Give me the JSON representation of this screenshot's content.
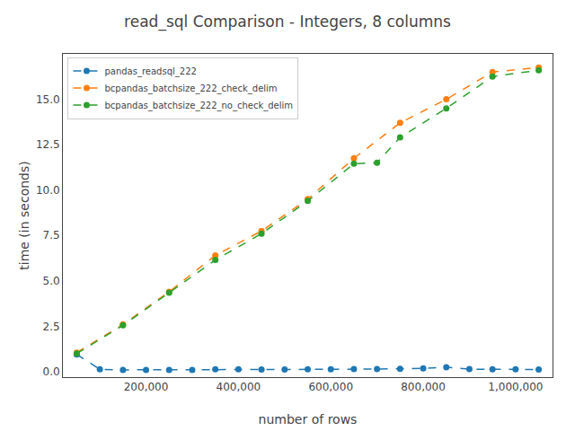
{
  "chart_data": {
    "type": "line",
    "title": "read_sql Comparison - Integers, 8 columns",
    "xlabel": "number of rows",
    "ylabel": "time (in seconds)",
    "series": [
      {
        "name": "pandas_readsql_222",
        "color": "#1f77b4",
        "marker": "circle",
        "line_style": "dashed",
        "x": [
          50000,
          100000,
          150000,
          200000,
          250000,
          300000,
          350000,
          400000,
          450000,
          500000,
          550000,
          600000,
          650000,
          700000,
          750000,
          800000,
          850000,
          900000,
          950000,
          1000000,
          1050000
        ],
        "values": [
          0.95,
          0.13,
          0.1,
          0.1,
          0.1,
          0.1,
          0.13,
          0.13,
          0.12,
          0.12,
          0.13,
          0.13,
          0.14,
          0.14,
          0.16,
          0.18,
          0.25,
          0.14,
          0.13,
          0.13,
          0.12
        ]
      },
      {
        "name": "bcpandas_batchsize_222_check_delim",
        "color": "#ff7f0e",
        "marker": "circle",
        "line_style": "dashed",
        "x": [
          50000,
          150000,
          250000,
          350000,
          450000,
          550000,
          650000,
          750000,
          850000,
          950000,
          1050000
        ],
        "values": [
          1.05,
          2.6,
          4.4,
          6.4,
          7.75,
          9.5,
          11.75,
          13.7,
          15.0,
          16.5,
          16.75
        ]
      },
      {
        "name": "bcpandas_batchsize_222_no_check_delim",
        "color": "#2ca02c",
        "marker": "circle",
        "line_style": "dashed",
        "x": [
          50000,
          150000,
          250000,
          350000,
          450000,
          550000,
          650000,
          700000,
          750000,
          850000,
          950000,
          1050000
        ],
        "values": [
          1.0,
          2.55,
          4.35,
          6.15,
          7.6,
          9.4,
          11.45,
          11.5,
          12.9,
          14.5,
          16.25,
          16.6
        ]
      }
    ],
    "xlim": [
      20000,
      1080000
    ],
    "ylim": [
      -0.3,
      17.5
    ],
    "xticks": [
      {
        "value": 200000,
        "label": "200,000"
      },
      {
        "value": 400000,
        "label": "400,000"
      },
      {
        "value": 600000,
        "label": "600,000"
      },
      {
        "value": 800000,
        "label": "800,000"
      },
      {
        "value": 1000000,
        "label": "1,000,000"
      }
    ],
    "yticks": [
      {
        "value": 0,
        "label": "0.0"
      },
      2.5,
      {
        "value": 5,
        "label": "5.0"
      },
      7.5,
      {
        "value": 10,
        "label": "10.0"
      },
      12.5,
      {
        "value": 15,
        "label": "15.0"
      }
    ],
    "grid": false,
    "legend": "upper left"
  }
}
